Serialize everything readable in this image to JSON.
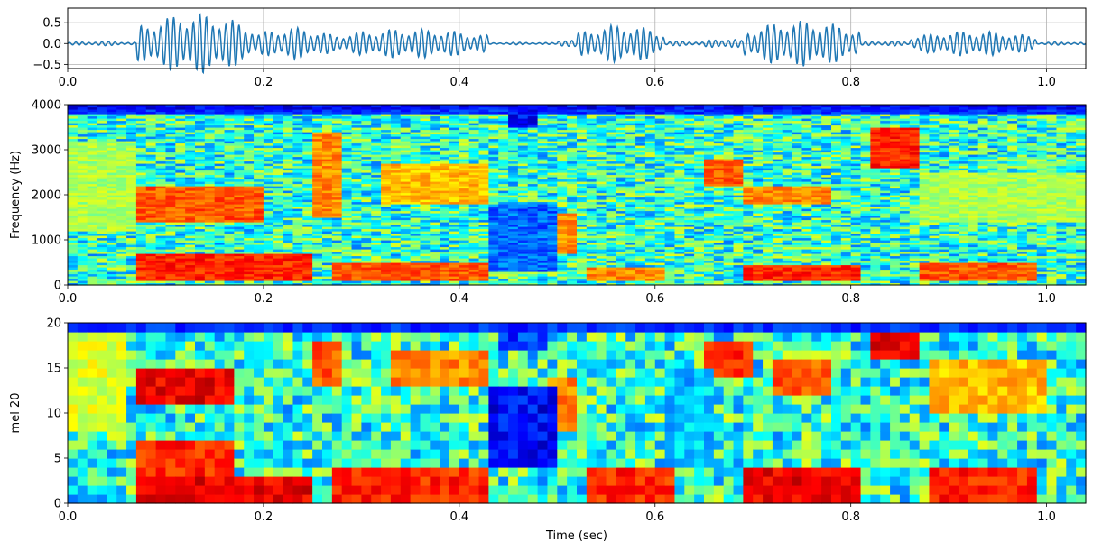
{
  "chart_data": [
    {
      "type": "line",
      "name": "waveform",
      "xlim": [
        0,
        1.04
      ],
      "ylim": [
        -0.6,
        0.85
      ],
      "x_ticks": [
        0.0,
        0.2,
        0.4,
        0.6,
        0.8,
        1.0
      ],
      "x_tick_labels": [
        "0.0",
        "0.2",
        "0.4",
        "0.6",
        "0.8",
        "1.0"
      ],
      "y_ticks": [
        0.5,
        0.0,
        -0.5
      ],
      "y_tick_labels": [
        "0.5",
        "0.0",
        "−0.5"
      ],
      "grid": true,
      "line_color": "#1f77b4",
      "segments": [
        {
          "t_start": 0.0,
          "t_end": 0.07,
          "amplitude": 0.05
        },
        {
          "t_start": 0.07,
          "t_end": 0.19,
          "amplitude": 0.72
        },
        {
          "t_start": 0.19,
          "t_end": 0.27,
          "amplitude": 0.38
        },
        {
          "t_start": 0.27,
          "t_end": 0.43,
          "amplitude": 0.35
        },
        {
          "t_start": 0.43,
          "t_end": 0.5,
          "amplitude": 0.03
        },
        {
          "t_start": 0.5,
          "t_end": 0.52,
          "amplitude": 0.12
        },
        {
          "t_start": 0.52,
          "t_end": 0.61,
          "amplitude": 0.45
        },
        {
          "t_start": 0.61,
          "t_end": 0.65,
          "amplitude": 0.06
        },
        {
          "t_start": 0.65,
          "t_end": 0.69,
          "amplitude": 0.12
        },
        {
          "t_start": 0.69,
          "t_end": 0.81,
          "amplitude": 0.55
        },
        {
          "t_start": 0.81,
          "t_end": 0.86,
          "amplitude": 0.06
        },
        {
          "t_start": 0.86,
          "t_end": 0.99,
          "amplitude": 0.3
        },
        {
          "t_start": 0.99,
          "t_end": 1.04,
          "amplitude": 0.04
        }
      ]
    },
    {
      "type": "heatmap",
      "name": "spectrogram",
      "ylabel": "Frequency (Hz)",
      "xlim": [
        0,
        1.04
      ],
      "ylim": [
        0,
        4000
      ],
      "x_ticks": [
        0.0,
        0.2,
        0.4,
        0.6,
        0.8,
        1.0
      ],
      "x_tick_labels": [
        "0.0",
        "0.2",
        "0.4",
        "0.6",
        "0.8",
        "1.0"
      ],
      "y_ticks": [
        0,
        1000,
        2000,
        3000,
        4000
      ],
      "y_tick_labels": [
        "0",
        "1000",
        "2000",
        "3000",
        "4000"
      ],
      "colormap": "jet",
      "time_bins": 104,
      "freq_bins": 80,
      "energy_regions": [
        {
          "t": [
            0.0,
            0.07
          ],
          "f": [
            1200,
            3200
          ],
          "level": 0.6
        },
        {
          "t": [
            0.07,
            0.25
          ],
          "f": [
            100,
            700
          ],
          "level": 0.9
        },
        {
          "t": [
            0.07,
            0.2
          ],
          "f": [
            1400,
            2200
          ],
          "level": 0.85
        },
        {
          "t": [
            0.25,
            0.28
          ],
          "f": [
            1500,
            3400
          ],
          "level": 0.8
        },
        {
          "t": [
            0.27,
            0.43
          ],
          "f": [
            100,
            500
          ],
          "level": 0.85
        },
        {
          "t": [
            0.32,
            0.43
          ],
          "f": [
            1800,
            2700
          ],
          "level": 0.75
        },
        {
          "t": [
            0.49,
            0.52
          ],
          "f": [
            700,
            1600
          ],
          "level": 0.8
        },
        {
          "t": [
            0.53,
            0.61
          ],
          "f": [
            100,
            400
          ],
          "level": 0.8
        },
        {
          "t": [
            0.65,
            0.69
          ],
          "f": [
            2200,
            2800
          ],
          "level": 0.85
        },
        {
          "t": [
            0.69,
            0.81
          ],
          "f": [
            100,
            450
          ],
          "level": 0.9
        },
        {
          "t": [
            0.69,
            0.78
          ],
          "f": [
            1800,
            2200
          ],
          "level": 0.8
        },
        {
          "t": [
            0.82,
            0.87
          ],
          "f": [
            2600,
            3500
          ],
          "level": 0.9
        },
        {
          "t": [
            0.87,
            0.99
          ],
          "f": [
            100,
            500
          ],
          "level": 0.85
        },
        {
          "t": [
            0.87,
            1.04
          ],
          "f": [
            1400,
            2500
          ],
          "level": 0.6
        }
      ]
    },
    {
      "type": "heatmap",
      "name": "mel spectrogram",
      "xlabel": "Time (sec)",
      "ylabel": "mel 20",
      "xlim": [
        0,
        1.04
      ],
      "ylim": [
        0,
        20
      ],
      "x_ticks": [
        0.0,
        0.2,
        0.4,
        0.6,
        0.8,
        1.0
      ],
      "x_tick_labels": [
        "0.0",
        "0.2",
        "0.4",
        "0.6",
        "0.8",
        "1.0"
      ],
      "y_ticks": [
        0,
        5,
        10,
        15,
        20
      ],
      "y_tick_labels": [
        "0",
        "5",
        "10",
        "15",
        "20"
      ],
      "colormap": "jet",
      "time_bins": 104,
      "mel_bins": 20,
      "energy_regions": [
        {
          "t": [
            0.0,
            0.06
          ],
          "m": [
            8,
            20
          ],
          "level": 0.65
        },
        {
          "t": [
            0.07,
            0.25
          ],
          "m": [
            0,
            3
          ],
          "level": 0.95
        },
        {
          "t": [
            0.07,
            0.17
          ],
          "m": [
            3,
            7
          ],
          "level": 0.9
        },
        {
          "t": [
            0.07,
            0.17
          ],
          "m": [
            11,
            15
          ],
          "level": 0.95
        },
        {
          "t": [
            0.25,
            0.28
          ],
          "m": [
            13,
            18
          ],
          "level": 0.85
        },
        {
          "t": [
            0.27,
            0.43
          ],
          "m": [
            0,
            4
          ],
          "level": 0.9
        },
        {
          "t": [
            0.33,
            0.43
          ],
          "m": [
            13,
            17
          ],
          "level": 0.8
        },
        {
          "t": [
            0.49,
            0.52
          ],
          "m": [
            8,
            14
          ],
          "level": 0.8
        },
        {
          "t": [
            0.53,
            0.62
          ],
          "m": [
            0,
            4
          ],
          "level": 0.9
        },
        {
          "t": [
            0.65,
            0.7
          ],
          "m": [
            14,
            18
          ],
          "level": 0.9
        },
        {
          "t": [
            0.69,
            0.81
          ],
          "m": [
            0,
            4
          ],
          "level": 0.95
        },
        {
          "t": [
            0.72,
            0.78
          ],
          "m": [
            12,
            16
          ],
          "level": 0.85
        },
        {
          "t": [
            0.82,
            0.87
          ],
          "m": [
            16,
            20
          ],
          "level": 0.95
        },
        {
          "t": [
            0.88,
            0.99
          ],
          "m": [
            0,
            4
          ],
          "level": 0.9
        },
        {
          "t": [
            0.88,
            1.0
          ],
          "m": [
            10,
            16
          ],
          "level": 0.75
        }
      ],
      "low_regions": [
        {
          "t": [
            0.43,
            0.5
          ],
          "m": [
            4,
            13
          ],
          "level": 0.05
        },
        {
          "t": [
            0.44,
            0.49
          ],
          "m": [
            17,
            20
          ],
          "level": 0.1
        },
        {
          "t": [
            0.61,
            0.66
          ],
          "m": [
            4,
            15
          ],
          "level": 0.25
        },
        {
          "t": [
            0.0,
            0.06
          ],
          "m": [
            0,
            2
          ],
          "level": 0.25
        }
      ]
    }
  ]
}
